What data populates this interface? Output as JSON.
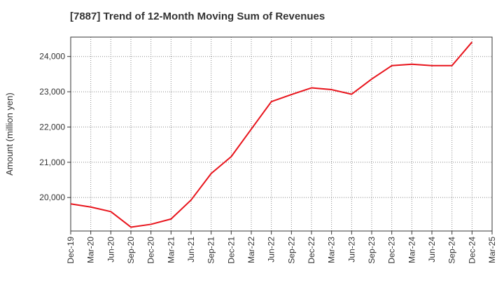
{
  "chart_data": {
    "type": "line",
    "title": "[7887]  Trend of 12-Month Moving Sum of Revenues",
    "xlabel": "",
    "ylabel": "Amount (million yen)",
    "categories": [
      "Dec-19",
      "Mar-20",
      "Jun-20",
      "Sep-20",
      "Dec-20",
      "Mar-21",
      "Jun-21",
      "Sep-21",
      "Dec-21",
      "Mar-22",
      "Jun-22",
      "Sep-22",
      "Dec-22",
      "Mar-23",
      "Jun-23",
      "Sep-23",
      "Dec-23",
      "Mar-24",
      "Jun-24",
      "Sep-24",
      "Dec-24",
      "Mar-25"
    ],
    "series": [
      {
        "values": [
          19820,
          19730,
          19600,
          19160,
          19240,
          19390,
          19930,
          20680,
          21160,
          21940,
          22720,
          22920,
          23110,
          23060,
          22930,
          23360,
          23740,
          23780,
          23740,
          23740,
          24410,
          null
        ],
        "color": "#e8141c"
      }
    ],
    "ylim": [
      19050,
      24550
    ],
    "yticks": [
      20000,
      21000,
      22000,
      23000,
      24000
    ],
    "ytick_labels": [
      "20,000",
      "21,000",
      "22,000",
      "23,000",
      "24,000"
    ],
    "grid": true,
    "grid_style": "dotted"
  }
}
